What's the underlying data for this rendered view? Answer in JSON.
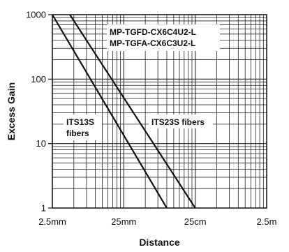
{
  "chart_data": {
    "type": "line",
    "title": "",
    "xlabel": "Distance",
    "ylabel": "Excess Gain",
    "x_scale": "log",
    "y_scale": "log",
    "x_unit": "m",
    "xlim": [
      0.0025,
      2.5
    ],
    "ylim": [
      1,
      1000
    ],
    "x_ticks": [
      {
        "value": 0.0025,
        "label": "2.5mm"
      },
      {
        "value": 0.025,
        "label": "25mm"
      },
      {
        "value": 0.25,
        "label": "25cm"
      },
      {
        "value": 2.5,
        "label": "2.5m"
      }
    ],
    "y_ticks": [
      {
        "value": 1,
        "label": "1"
      },
      {
        "value": 10,
        "label": "10"
      },
      {
        "value": 100,
        "label": "100"
      },
      {
        "value": 1000,
        "label": "1000"
      }
    ],
    "grid": true,
    "legend": "none",
    "series": [
      {
        "label": "ITS13S fibers",
        "x": [
          0.0025,
          0.1
        ],
        "y": [
          1000,
          1
        ]
      },
      {
        "label": "ITS23S fibers",
        "x": [
          0.0044,
          0.25
        ],
        "y": [
          1000,
          1
        ]
      }
    ],
    "annotations": [
      {
        "lines": [
          "MP-TGFD-CX6C4U2-L",
          "MP-TGFA-CX6C3U2-L"
        ],
        "position": "top-right"
      },
      {
        "lines": [
          "ITS13S",
          "fibers"
        ],
        "position": "left-middle"
      },
      {
        "lines": [
          "ITS23S fibers"
        ],
        "position": "center-middle"
      }
    ]
  }
}
